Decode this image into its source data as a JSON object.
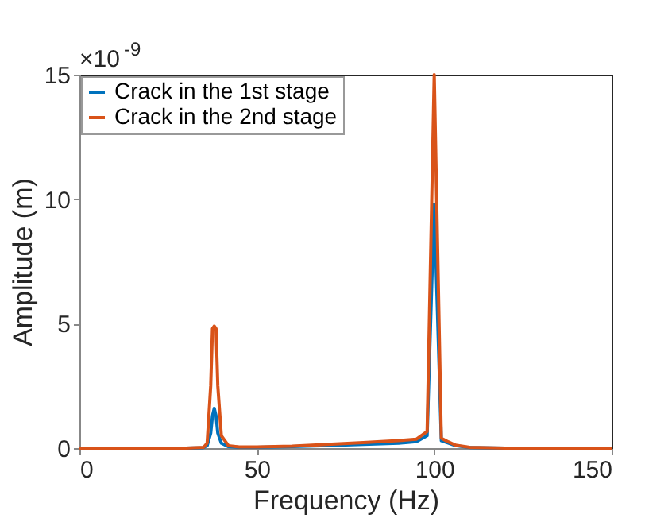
{
  "chart_data": {
    "type": "line",
    "xlabel": "Frequency (Hz)",
    "ylabel": "Amplitude (m)",
    "annotations": [
      "×10$^{-9}$"
    ],
    "xlim": [
      0,
      150
    ],
    "xticks": [
      0,
      50,
      100,
      150
    ],
    "ylim": [
      0,
      15
    ],
    "yticks": [
      0,
      5,
      10,
      15
    ],
    "grid": false,
    "legend": "top left",
    "line_style": "solid",
    "marker": "none",
    "series": [
      {
        "name": "Crack in the 1st stage",
        "color": "#0072bd",
        "x": [
          0,
          30,
          35,
          36,
          37,
          37.5,
          38,
          38.5,
          39,
          40,
          42,
          45,
          50,
          60,
          70,
          80,
          90,
          95,
          98,
          100,
          102,
          104,
          106,
          110,
          120,
          150
        ],
        "values": [
          0,
          0,
          0.02,
          0.1,
          0.6,
          1.3,
          1.6,
          1.3,
          0.6,
          0.2,
          0.06,
          0.03,
          0.03,
          0.06,
          0.1,
          0.15,
          0.2,
          0.26,
          0.5,
          9.8,
          0.3,
          0.2,
          0.1,
          0.02,
          0,
          0
        ]
      },
      {
        "name": "Crack in the 2nd stage",
        "color": "#d95319",
        "x": [
          0,
          30,
          35,
          36,
          37,
          37.5,
          38,
          38.5,
          39,
          40,
          42,
          45,
          50,
          60,
          70,
          80,
          90,
          95,
          98,
          100,
          102,
          104,
          106,
          110,
          120,
          150
        ],
        "values": [
          0,
          0,
          0.03,
          0.2,
          2.5,
          4.8,
          4.9,
          4.8,
          2.5,
          0.5,
          0.1,
          0.05,
          0.05,
          0.08,
          0.15,
          0.22,
          0.3,
          0.36,
          0.67,
          15,
          0.4,
          0.25,
          0.12,
          0.03,
          0,
          0
        ]
      }
    ]
  }
}
